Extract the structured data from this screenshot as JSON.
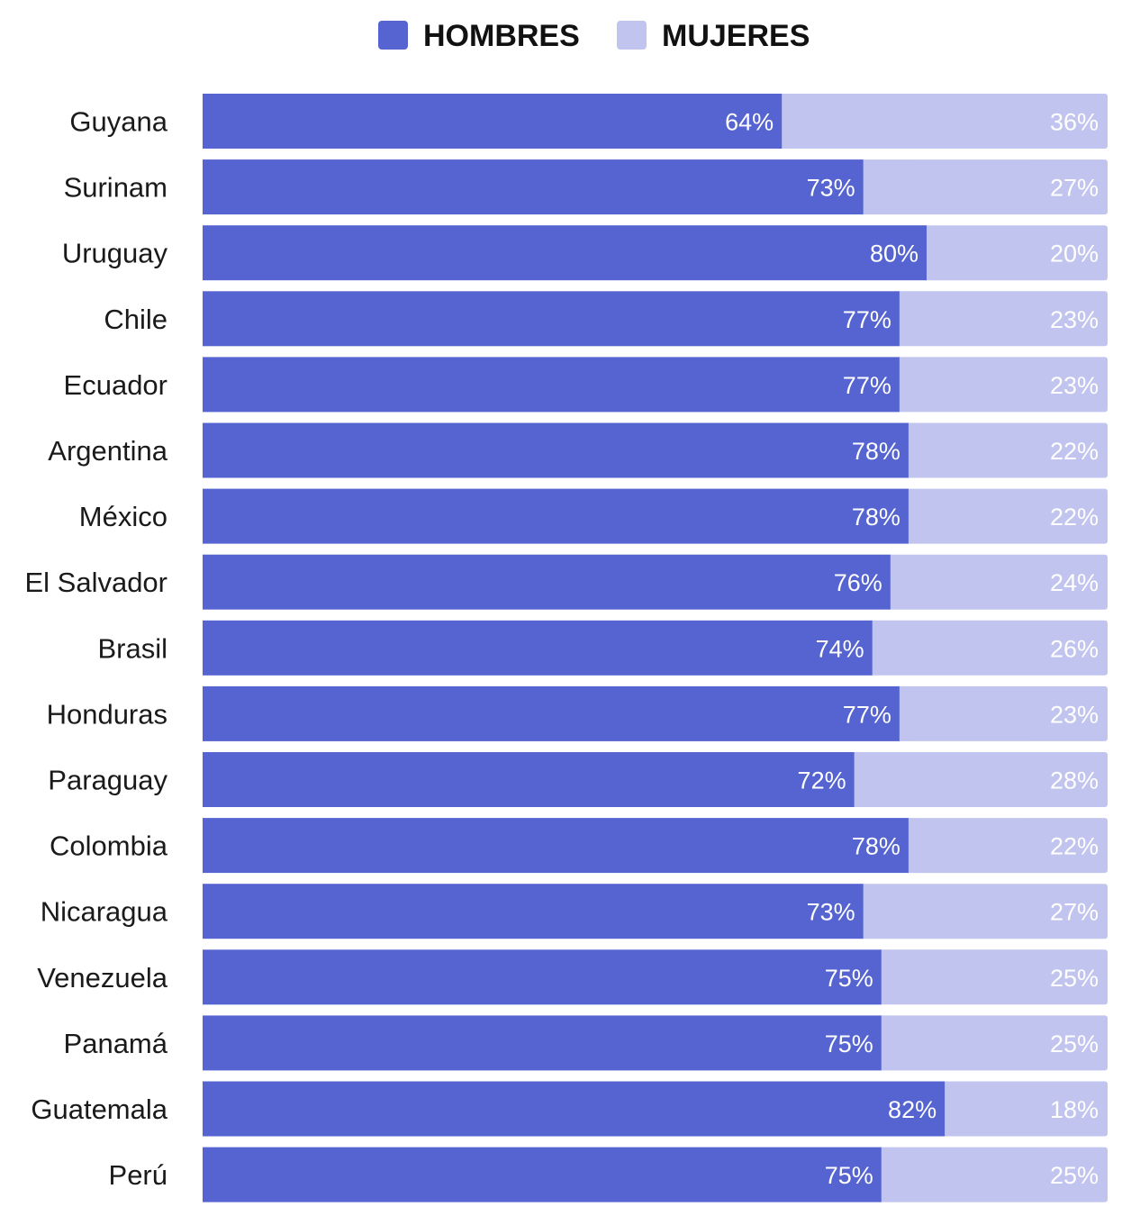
{
  "chart_data": {
    "type": "bar",
    "orientation": "horizontal",
    "stacked": true,
    "normalized_to": 100,
    "legend_position": "top-center",
    "categories": [
      "Guyana",
      "Surinam",
      "Uruguay",
      "Chile",
      "Ecuador",
      "Argentina",
      "México",
      "El Salvador",
      "Brasil",
      "Honduras",
      "Paraguay",
      "Colombia",
      "Nicaragua",
      "Venezuela",
      "Panamá",
      "Guatemala",
      "Perú"
    ],
    "series": [
      {
        "name": "HOMBRES",
        "color": "#5564d0",
        "values": [
          64,
          73,
          80,
          77,
          77,
          78,
          78,
          76,
          74,
          77,
          72,
          78,
          73,
          75,
          75,
          82,
          75
        ],
        "labels": [
          "64%",
          "73%",
          "80%",
          "77%",
          "77%",
          "78%",
          "78%",
          "76%",
          "74%",
          "77%",
          "72%",
          "78%",
          "73%",
          "75%",
          "75%",
          "82%",
          "75%"
        ]
      },
      {
        "name": "MUJERES",
        "color": "#c1c4ee",
        "values": [
          36,
          27,
          20,
          23,
          23,
          22,
          22,
          24,
          26,
          23,
          28,
          22,
          27,
          25,
          25,
          18,
          25
        ],
        "labels": [
          "36%",
          "27%",
          "20%",
          "23%",
          "23%",
          "22%",
          "22%",
          "24%",
          "26%",
          "23%",
          "28%",
          "22%",
          "27%",
          "25%",
          "25%",
          "18%",
          "25%"
        ]
      }
    ],
    "grid": false
  }
}
